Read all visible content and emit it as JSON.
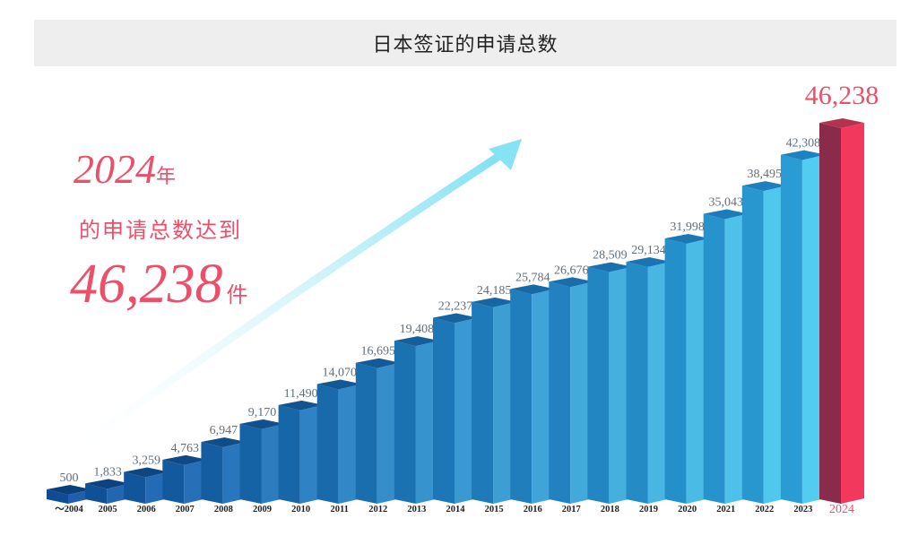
{
  "header": {
    "title": "日本签证的申请总数"
  },
  "callout": {
    "year": "2024",
    "year_suffix": "年",
    "line2": "的申请总数达到",
    "total": "46,238",
    "unit": "件"
  },
  "colors": {
    "bar_front_start": "#1f5fae",
    "bar_front_end": "#55d2f3",
    "highlight_front": "#f2385c",
    "highlight_side": "#8a2b4b",
    "highlight_text": "#ec4f6a"
  },
  "chart_data": {
    "type": "bar",
    "title": "日本签证的申请总数",
    "xlabel": "",
    "ylabel": "",
    "ylim": [
      0,
      46238
    ],
    "grid": false,
    "categories": [
      "～2004",
      "2005",
      "2006",
      "2007",
      "2008",
      "2009",
      "2010",
      "2011",
      "2012",
      "2013",
      "2014",
      "2015",
      "2016",
      "2017",
      "2018",
      "2019",
      "2020",
      "2021",
      "2022",
      "2023",
      "2024"
    ],
    "values": [
      500,
      1833,
      3259,
      4763,
      6947,
      9170,
      11490,
      14070,
      16695,
      19408,
      22237,
      24185,
      25784,
      26676,
      28509,
      29134,
      31998,
      35043,
      38495,
      42308,
      46238
    ],
    "value_labels": [
      "500",
      "1,833",
      "3,259",
      "4,763",
      "6,947",
      "9,170",
      "11,490",
      "14,070",
      "16,695",
      "19,408",
      "22,237",
      "24,185",
      "25,784",
      "26,676",
      "28,509",
      "29,134",
      "31,998",
      "35,043",
      "38,495",
      "42,308",
      "46,238"
    ],
    "highlight_category": "2024"
  }
}
